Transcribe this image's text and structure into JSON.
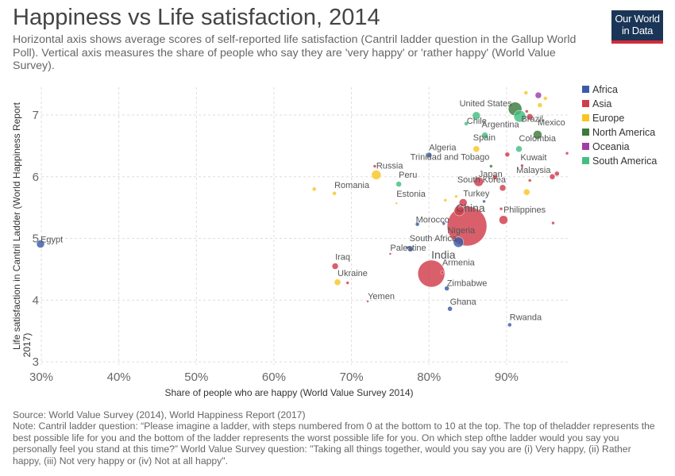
{
  "header": {
    "title": "Happiness vs Life satisfaction, 2014",
    "subtitle": "Horizontal axis shows average scores of self-reported life satisfaction (Cantril ladder question in the Gallup World Poll). Vertical axis measures the share of people who say they are 'very happy' or 'rather happy' (World Value Survey).",
    "logo_line1": "Our World",
    "logo_line2": "in Data"
  },
  "footer": {
    "source": "Source: World Value Survey (2014), World Happiness Report (2017)",
    "note": "Note: Cantril ladder question: “Please imagine a ladder, with steps numbered from 0 at the bottom to 10 at the top. The top of theladder represents the best possible life for you and the bottom of the ladder represents the worst possible life for you. On which step ofthe ladder would you say you personally feel you stand at this time?” World Value Survey question: \"Taking all things together, would you say you are (i) Very happy, (ii) Rather happy, (iii) Not very happy or (iv) Not at all happy\"."
  },
  "chart_data": {
    "type": "scatter",
    "xlabel": "Share of people who are happy (World Value Survey 2014)",
    "ylabel": "Life satisfaction in Cantril Ladder (World Happiness Report 2017)",
    "xlim": [
      30,
      98
    ],
    "ylim": [
      2.95,
      7.45
    ],
    "x_ticks": [
      30,
      40,
      50,
      60,
      70,
      80,
      90
    ],
    "x_tick_labels": [
      "30%",
      "40%",
      "50%",
      "60%",
      "70%",
      "80%",
      "90%"
    ],
    "y_ticks": [
      3,
      4,
      5,
      6,
      7
    ],
    "y_tick_labels": [
      "3",
      "4",
      "5",
      "6",
      "7"
    ],
    "grid": true,
    "legend_placement": "right",
    "legend": [
      {
        "name": "Africa",
        "color": "#3b5ba9"
      },
      {
        "name": "Asia",
        "color": "#d13c4b"
      },
      {
        "name": "Europe",
        "color": "#f9c623"
      },
      {
        "name": "North America",
        "color": "#3b7a3c"
      },
      {
        "name": "Oceania",
        "color": "#a03ea5"
      },
      {
        "name": "South America",
        "color": "#43c07f"
      }
    ],
    "points": [
      {
        "label": "United States",
        "x": 91.1,
        "y": 7.1,
        "r": 8.5,
        "region": "North America"
      },
      {
        "label": "Brazil",
        "x": 91.7,
        "y": 6.98,
        "r": 7.5,
        "region": "South America"
      },
      {
        "label": "Chile",
        "x": 86.1,
        "y": 6.99,
        "r": 5,
        "region": "South America"
      },
      {
        "label": "Argentina",
        "x": 87.2,
        "y": 6.67,
        "r": 4,
        "region": "South America"
      },
      {
        "label": "Mexico",
        "x": 94.0,
        "y": 6.68,
        "r": 5.5,
        "region": "North America"
      },
      {
        "label": "Spain",
        "x": 86.1,
        "y": 6.45,
        "r": 4,
        "region": "Europe"
      },
      {
        "label": "Colombia",
        "x": 91.6,
        "y": 6.45,
        "r": 4,
        "region": "South America"
      },
      {
        "label": "Algeria",
        "x": 80.0,
        "y": 6.35,
        "r": 3.5,
        "region": "Africa"
      },
      {
        "label": "Trinidad and Tobago",
        "x": 88.0,
        "y": 6.17,
        "r": 2,
        "region": "North America"
      },
      {
        "label": "Kuwait",
        "x": 92.0,
        "y": 6.18,
        "r": 2,
        "region": "Asia"
      },
      {
        "label": "Russia",
        "x": 73.2,
        "y": 6.03,
        "r": 6,
        "region": "Europe"
      },
      {
        "label": "Peru",
        "x": 76.1,
        "y": 5.88,
        "r": 3.5,
        "region": "South America"
      },
      {
        "label": "Japan",
        "x": 86.4,
        "y": 5.92,
        "r": 6,
        "region": "Asia"
      },
      {
        "label": "Malaysia",
        "x": 95.9,
        "y": 6.0,
        "r": 3.5,
        "region": "Asia"
      },
      {
        "label": "South Korea",
        "x": 89.5,
        "y": 5.82,
        "r": 4,
        "region": "Asia"
      },
      {
        "label": "Romania",
        "x": 67.8,
        "y": 5.73,
        "r": 2.5,
        "region": "Europe"
      },
      {
        "label": "Estonia",
        "x": 75.8,
        "y": 5.57,
        "r": 1.5,
        "region": "Europe"
      },
      {
        "label": "Turkey",
        "x": 84.4,
        "y": 5.58,
        "r": 5,
        "region": "Asia"
      },
      {
        "label": "China",
        "x": 84.9,
        "y": 5.2,
        "r": 25,
        "region": "Asia"
      },
      {
        "label": "Philippines",
        "x": 89.6,
        "y": 5.3,
        "r": 5.5,
        "region": "Asia"
      },
      {
        "label": "Morocco",
        "x": 78.5,
        "y": 5.23,
        "r": 2.5,
        "region": "Africa"
      },
      {
        "label": "Nigeria",
        "x": 83.8,
        "y": 4.94,
        "r": 6.5,
        "region": "Africa"
      },
      {
        "label": "Egypt",
        "x": 29.9,
        "y": 4.91,
        "r": 5,
        "region": "Africa"
      },
      {
        "label": "South Africa",
        "x": 77.6,
        "y": 4.83,
        "r": 3.5,
        "region": "Africa"
      },
      {
        "label": "Palestine",
        "x": 75.0,
        "y": 4.75,
        "r": 1.5,
        "region": "Asia"
      },
      {
        "label": "India",
        "x": 80.3,
        "y": 4.43,
        "r": 17,
        "region": "Asia"
      },
      {
        "label": "Armenia",
        "x": 81.7,
        "y": 4.45,
        "r": 2,
        "region": "Asia"
      },
      {
        "label": "Iraq",
        "x": 67.9,
        "y": 4.55,
        "r": 4,
        "region": "Asia"
      },
      {
        "label": "Ukraine",
        "x": 68.2,
        "y": 4.29,
        "r": 4,
        "region": "Europe"
      },
      {
        "label": "Zimbabwe",
        "x": 82.3,
        "y": 4.19,
        "r": 3,
        "region": "Africa"
      },
      {
        "label": "Yemen",
        "x": 72.1,
        "y": 3.98,
        "r": 1.5,
        "region": "Asia"
      },
      {
        "label": "Ghana",
        "x": 82.7,
        "y": 3.86,
        "r": 3,
        "region": "Africa"
      },
      {
        "label": "Rwanda",
        "x": 90.4,
        "y": 3.6,
        "r": 2.5,
        "region": "Africa"
      },
      {
        "label": "",
        "x": 92.5,
        "y": 7.36,
        "r": 2.5,
        "region": "Europe"
      },
      {
        "label": "",
        "x": 94.1,
        "y": 7.32,
        "r": 4,
        "region": "Oceania"
      },
      {
        "label": "",
        "x": 95.0,
        "y": 7.27,
        "r": 2.5,
        "region": "Europe"
      },
      {
        "label": "",
        "x": 94.3,
        "y": 7.16,
        "r": 3,
        "region": "Europe"
      },
      {
        "label": "",
        "x": 92.6,
        "y": 7.06,
        "r": 2,
        "region": "Asia"
      },
      {
        "label": "",
        "x": 93.0,
        "y": 6.97,
        "r": 4,
        "region": "Asia"
      },
      {
        "label": "",
        "x": 84.8,
        "y": 6.86,
        "r": 2.5,
        "region": "South America"
      },
      {
        "label": "",
        "x": 90.1,
        "y": 6.36,
        "r": 3,
        "region": "Asia"
      },
      {
        "label": "",
        "x": 97.8,
        "y": 6.38,
        "r": 2,
        "region": "Asia"
      },
      {
        "label": "",
        "x": 73.0,
        "y": 6.17,
        "r": 2,
        "region": "Asia"
      },
      {
        "label": "",
        "x": 88.5,
        "y": 5.99,
        "r": 3,
        "region": "Asia"
      },
      {
        "label": "",
        "x": 96.5,
        "y": 6.05,
        "r": 3,
        "region": "Asia"
      },
      {
        "label": "",
        "x": 93.0,
        "y": 5.94,
        "r": 2,
        "region": "Asia"
      },
      {
        "label": "",
        "x": 65.2,
        "y": 5.8,
        "r": 2.5,
        "region": "Europe"
      },
      {
        "label": "",
        "x": 92.6,
        "y": 5.75,
        "r": 4,
        "region": "Europe"
      },
      {
        "label": "",
        "x": 82.1,
        "y": 5.62,
        "r": 2,
        "region": "Europe"
      },
      {
        "label": "",
        "x": 83.5,
        "y": 5.68,
        "r": 2,
        "region": "Europe"
      },
      {
        "label": "",
        "x": 87.1,
        "y": 5.6,
        "r": 2,
        "region": "Africa"
      },
      {
        "label": "",
        "x": 83.9,
        "y": 5.45,
        "r": 6.5,
        "region": "Asia"
      },
      {
        "label": "",
        "x": 89.3,
        "y": 5.48,
        "r": 2,
        "region": "Asia"
      },
      {
        "label": "",
        "x": 96.0,
        "y": 5.25,
        "r": 2,
        "region": "Asia"
      },
      {
        "label": "",
        "x": 81.9,
        "y": 5.24,
        "r": 2,
        "region": "Africa"
      },
      {
        "label": "",
        "x": 77.2,
        "y": 4.85,
        "r": 2,
        "region": "Africa"
      },
      {
        "label": "",
        "x": 69.5,
        "y": 4.28,
        "r": 2,
        "region": "Asia"
      }
    ]
  }
}
